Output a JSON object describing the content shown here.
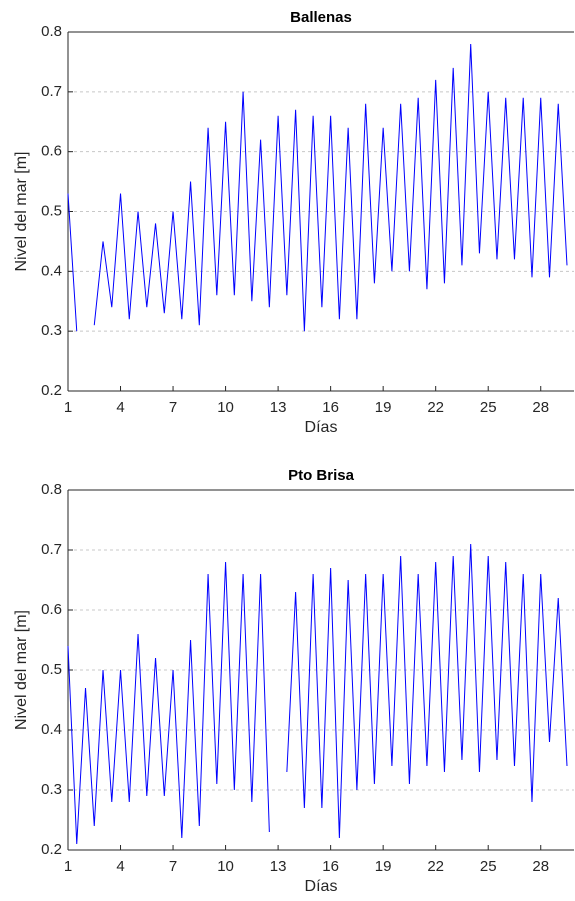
{
  "chart_data": [
    {
      "type": "line",
      "title": "Ballenas",
      "xlabel": "Días",
      "ylabel": "Nivel del mar [m]",
      "color": "#0000ff",
      "xlim": [
        1,
        29.9
      ],
      "ylim": [
        0.2,
        0.8
      ],
      "xticks": [
        1,
        4,
        7,
        10,
        13,
        16,
        19,
        22,
        25,
        28
      ],
      "yticks": [
        0.2,
        0.3,
        0.4,
        0.5,
        0.6,
        0.7,
        0.8
      ],
      "grid": true,
      "x": [
        1,
        1.5,
        2,
        2.5,
        3,
        3.5,
        4,
        4.5,
        5,
        5.5,
        6,
        6.5,
        7,
        7.5,
        8,
        8.5,
        9,
        9.5,
        10,
        10.5,
        11,
        11.5,
        12,
        12.5,
        13,
        13.5,
        14,
        14.5,
        15,
        15.5,
        16,
        16.5,
        17,
        17.5,
        18,
        18.5,
        19,
        19.5,
        20,
        20.5,
        21,
        21.5,
        22,
        22.5,
        23,
        23.5,
        24,
        24.5,
        25,
        25.5,
        26,
        26.5,
        27,
        27.5,
        28,
        28.5,
        29,
        29.5
      ],
      "values": [
        0.53,
        0.3,
        null,
        0.31,
        0.45,
        0.34,
        0.53,
        0.32,
        0.5,
        0.34,
        0.48,
        0.33,
        0.5,
        0.32,
        0.55,
        0.31,
        0.64,
        0.36,
        0.65,
        0.36,
        0.7,
        0.35,
        0.62,
        0.34,
        0.66,
        0.36,
        0.67,
        0.3,
        0.66,
        0.34,
        0.66,
        0.32,
        0.64,
        0.32,
        0.68,
        0.38,
        0.64,
        0.4,
        0.68,
        0.4,
        0.69,
        0.37,
        0.72,
        0.38,
        0.74,
        0.41,
        0.78,
        0.43,
        0.7,
        0.42,
        0.69,
        0.42,
        0.69,
        0.39,
        0.69,
        0.39,
        0.68,
        0.41
      ]
    },
    {
      "type": "line",
      "title": "Pto Brisa",
      "xlabel": "Días",
      "ylabel": "Nivel del mar [m]",
      "color": "#0000ff",
      "xlim": [
        1,
        29.9
      ],
      "ylim": [
        0.2,
        0.8
      ],
      "xticks": [
        1,
        4,
        7,
        10,
        13,
        16,
        19,
        22,
        25,
        28
      ],
      "yticks": [
        0.2,
        0.3,
        0.4,
        0.5,
        0.6,
        0.7,
        0.8
      ],
      "grid": true,
      "x": [
        1,
        1.5,
        2,
        2.5,
        3,
        3.5,
        4,
        4.5,
        5,
        5.5,
        6,
        6.5,
        7,
        7.5,
        8,
        8.5,
        9,
        9.5,
        10,
        10.5,
        11,
        11.5,
        12,
        12.5,
        13,
        13.5,
        14,
        14.5,
        15,
        15.5,
        16,
        16.5,
        17,
        17.5,
        18,
        18.5,
        19,
        19.5,
        20,
        20.5,
        21,
        21.5,
        22,
        22.5,
        23,
        23.5,
        24,
        24.5,
        25,
        25.5,
        26,
        26.5,
        27,
        27.5,
        28,
        28.5,
        29,
        29.5
      ],
      "values": [
        0.54,
        0.21,
        0.47,
        0.24,
        0.5,
        0.28,
        0.5,
        0.28,
        0.56,
        0.29,
        0.52,
        0.29,
        0.5,
        0.22,
        0.55,
        0.24,
        0.66,
        0.31,
        0.68,
        0.3,
        0.66,
        0.28,
        0.66,
        0.23,
        null,
        0.33,
        0.63,
        0.27,
        0.66,
        0.27,
        0.67,
        0.22,
        0.65,
        0.3,
        0.66,
        0.31,
        0.66,
        0.34,
        0.69,
        0.31,
        0.66,
        0.34,
        0.68,
        0.33,
        0.69,
        0.35,
        0.71,
        0.33,
        0.69,
        0.35,
        0.68,
        0.34,
        0.66,
        0.28,
        0.66,
        0.38,
        0.62,
        0.34
      ]
    }
  ]
}
